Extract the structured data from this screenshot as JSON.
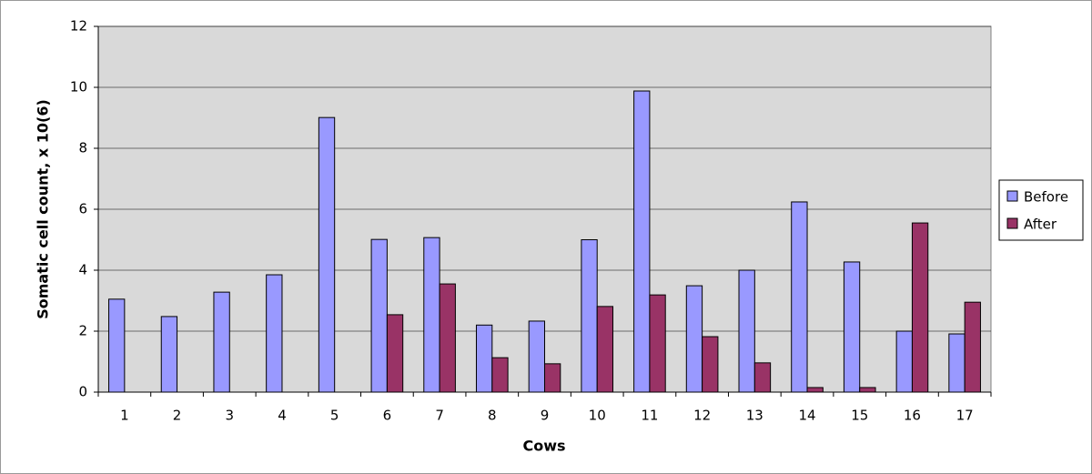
{
  "chart_data": {
    "type": "bar",
    "x_label": "Cows",
    "y_label": "Somatic cell count, x 10(6)",
    "categories": [
      "1",
      "2",
      "3",
      "4",
      "5",
      "6",
      "7",
      "8",
      "9",
      "10",
      "11",
      "12",
      "13",
      "14",
      "15",
      "16",
      "17"
    ],
    "series": [
      {
        "name": "Before",
        "color": "#9999ff",
        "values": [
          3.05,
          2.48,
          3.28,
          3.85,
          9.01,
          5.01,
          5.07,
          2.2,
          2.33,
          5.0,
          9.88,
          3.49,
          4.0,
          6.24,
          4.27,
          2.0,
          1.91
        ]
      },
      {
        "name": "After",
        "color": "#993366",
        "values": [
          null,
          null,
          null,
          null,
          null,
          2.54,
          3.55,
          1.13,
          0.93,
          2.81,
          3.19,
          1.82,
          0.96,
          0.15,
          0.15,
          5.55,
          2.95
        ]
      }
    ],
    "ylim": [
      0,
      12
    ],
    "yticks": [
      0,
      2,
      4,
      6,
      8,
      10,
      12
    ],
    "grid": true,
    "legend": "right",
    "plot_background": "#d9d9d9"
  }
}
